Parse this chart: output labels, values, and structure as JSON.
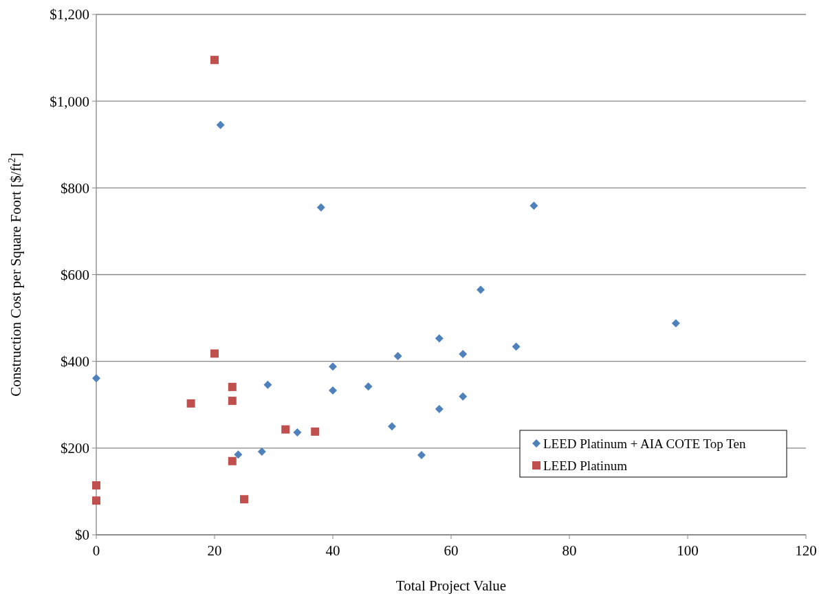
{
  "chart_data": {
    "type": "scatter",
    "xlabel": "Total Project Value",
    "ylabel": "Construction Cost per Square Foort [$/ft$^{2}$]",
    "xlim": [
      0,
      120
    ],
    "xticks": [
      0,
      20,
      40,
      60,
      80,
      100,
      120
    ],
    "ylim": [
      0,
      1200
    ],
    "yticks": [
      {
        "value": 0,
        "label": "$0"
      },
      {
        "value": 200,
        "label": "$200"
      },
      {
        "value": 400,
        "label": "$400"
      },
      {
        "value": 600,
        "label": "$600"
      },
      {
        "value": 800,
        "label": "$800"
      },
      {
        "value": 1000,
        "label": "$1,000"
      },
      {
        "value": 1200,
        "label": "$1,200"
      }
    ],
    "grid": "y",
    "legend": "bottom right",
    "series": [
      {
        "name": "LEED Platinum + AIA COTE Top Ten",
        "color": "#4f81bd",
        "marker": "diamond",
        "x": [
          0,
          21,
          38,
          74,
          65,
          98,
          58,
          71,
          51,
          62,
          40,
          29,
          46,
          40,
          62,
          58,
          50,
          34,
          24,
          28,
          55
        ],
        "values": [
          361,
          945,
          755,
          759,
          565,
          488,
          453,
          434,
          412,
          417,
          388,
          346,
          342,
          333,
          319,
          290,
          250,
          236,
          185,
          192,
          184
        ]
      },
      {
        "name": "LEED Platinum",
        "color": "#c0504d",
        "marker": "square",
        "x": [
          20,
          20,
          23,
          23,
          16,
          32,
          37,
          23,
          25,
          0,
          0
        ],
        "values": [
          1095,
          418,
          341,
          309,
          303,
          243,
          238,
          170,
          82,
          114,
          79
        ]
      }
    ]
  }
}
